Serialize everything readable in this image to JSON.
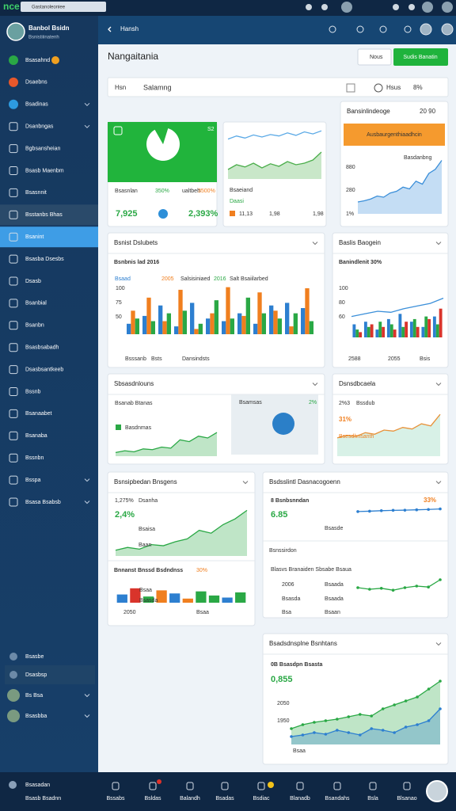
{
  "status_bar": {
    "logo": "nce",
    "search": "Gastanoleoniee"
  },
  "sidebar": {
    "user": {
      "name": "Banbol Bsidn",
      "role": "Bsnistiiinatenh"
    },
    "menu": [
      "Bsasahnd",
      "Dsaebns",
      "Bsadinas",
      "Dsanbngas",
      "Bgbsansheian",
      "Bsasb Maenbm",
      "Bsasnnit",
      "Bsstanbs Bhas",
      "Bsanint",
      "Bsasba Dsesbs",
      "Dsasb",
      "Bsanbial",
      "Bsanbn",
      "Bsasbsabadh",
      "Dsasbsantkeeb",
      "Bssnb",
      "Bsanaabet",
      "Bsanaba",
      "Bssnbn",
      "Bsspa",
      "Bsasa Bsabsb"
    ],
    "bottom": [
      "Bsasbe",
      "Dsasbsp",
      "Bs Bsa",
      "Bsasbba"
    ],
    "footer": [
      "Bsasadan",
      "Bsasb Bsadnn"
    ]
  },
  "header": {
    "title": "Hansh"
  },
  "page": {
    "title": "Nangaitania",
    "buttons": [
      "Nous",
      "Sudis Banatin"
    ]
  },
  "filter": [
    "Hsn",
    "Salamng",
    "Hsus",
    "8%"
  ],
  "cards": [
    {
      "texts": [
        "S2",
        "Bsasnlan",
        "350%",
        "ualtbeh",
        "3500%",
        "7,925",
        "2,393%"
      ],
      "charts": [
        {
          "type": "pie",
          "values": [
            87,
            13
          ],
          "colors": [
            "#ffffff",
            "#23b43c"
          ]
        }
      ]
    },
    {
      "texts": [
        "Bsaeiand",
        "Daasi",
        "11,13",
        "1,98",
        "1,98"
      ],
      "charts": [
        {
          "type": "line",
          "ylim": [
            0,
            100
          ],
          "series": [
            {
              "color": "#5aa9e6",
              "values": [
                40,
                55,
                45,
                60,
                50,
                62,
                55,
                70,
                58,
                75,
                65,
                80
              ]
            }
          ]
        },
        {
          "type": "area",
          "ylim": [
            0,
            100
          ],
          "series": [
            {
              "color": "#4cae4c",
              "values": [
                30,
                45,
                38,
                50,
                35,
                48,
                40,
                55,
                45,
                50,
                60,
                85
              ]
            }
          ]
        }
      ]
    },
    {
      "title": "Bansinlindeoge",
      "texts": [
        "20 90",
        "Ausbaurgenthiaadhcin",
        "Basdanbng",
        "880",
        "280",
        "1%"
      ],
      "charts": [
        {
          "type": "area",
          "ylim": [
            0,
            100
          ],
          "series": [
            {
              "color": "#3b8fd9",
              "values": [
                20,
                22,
                25,
                30,
                28,
                35,
                38,
                45,
                42,
                55,
                50,
                68,
                75,
                90
              ]
            }
          ]
        }
      ]
    },
    {
      "title": "Bsnist Dslubets",
      "texts": [
        "Bsnbnis lad 2016",
        "Bsaad",
        "2005",
        "Salsisiniaed",
        "2016",
        "Salt Bsaiilarbed",
        "100",
        "75",
        "50",
        "Bsssanb",
        "Bsts",
        "Dansindsts"
      ],
      "charts": [
        {
          "type": "bar",
          "ylim": [
            0,
            100
          ],
          "series": [
            {
              "color": "#2d7fd0",
              "values": [
                20,
                35,
                55,
                15,
                60,
                30,
                25,
                40,
                20,
                55,
                60,
                50
              ]
            },
            {
              "color": "#f07f1f",
              "values": [
                45,
                70,
                25,
                85,
                10,
                40,
                90,
                35,
                80,
                45,
                15,
                88
              ]
            },
            {
              "color": "#2aa845",
              "values": [
                30,
                25,
                40,
                45,
                20,
                65,
                30,
                70,
                40,
                30,
                40,
                25
              ]
            }
          ]
        }
      ]
    },
    {
      "title": "Baslis Baogein",
      "texts": [
        "Banindlenit 30%",
        "100",
        "80",
        "60",
        "2588",
        "2055",
        "Bsis"
      ],
      "charts": [
        {
          "type": "combo",
          "ylim": [
            0,
            100
          ],
          "series": [
            {
              "kind": "bar",
              "color": "#2d7fd0",
              "values": [
                25,
                30,
                15,
                35,
                45,
                30,
                20,
                40
              ]
            },
            {
              "kind": "bar",
              "color": "#2aa845",
              "values": [
                15,
                20,
                30,
                25,
                20,
                35,
                40,
                25
              ]
            },
            {
              "kind": "bar",
              "color": "#d9342b",
              "values": [
                10,
                25,
                20,
                15,
                30,
                20,
                35,
                55
              ]
            },
            {
              "kind": "line",
              "color": "#3b8fd9",
              "values": [
                40,
                45,
                50,
                48,
                55,
                60,
                65,
                75
              ]
            }
          ]
        }
      ]
    },
    {
      "title": "Sbsasdnlouns",
      "texts": [
        "Bsanab Btanas",
        "Basdnmas",
        "Bsamsas",
        "2%"
      ],
      "charts": [
        {
          "type": "area",
          "ylim": [
            0,
            100
          ],
          "series": [
            {
              "color": "#2aa845",
              "values": [
                10,
                15,
                12,
                20,
                18,
                25,
                22,
                45,
                40,
                55,
                50,
                65
              ]
            }
          ]
        }
      ]
    },
    {
      "title": "Dsnsdbcaela",
      "texts": [
        "2%3",
        "Bssdub",
        "31%",
        "Bsesdhnsanth"
      ],
      "charts": [
        {
          "type": "area",
          "ylim": [
            0,
            100
          ],
          "series": [
            {
              "color": "#e8923a",
              "fill_color": "#7fd0b0",
              "values": [
                35,
                40,
                38,
                45,
                42,
                50,
                48,
                55,
                52,
                62,
                58,
                80
              ]
            }
          ]
        }
      ]
    },
    {
      "title": "Bsnsipbedan Bnsgens",
      "texts": [
        "1,275%",
        "Dsanha",
        "2,4%",
        "Bsaisa",
        "Baan",
        "Bnnanst Bnssd Bsdndnss",
        "30%",
        "Bsaa",
        "Bsasda",
        "2050",
        "Bsaa"
      ],
      "charts": [
        {
          "type": "area",
          "ylim": [
            0,
            100
          ],
          "series": [
            {
              "color": "#2aa845",
              "values": [
                10,
                15,
                12,
                20,
                18,
                25,
                30,
                45,
                40,
                55,
                65,
                80
              ]
            }
          ]
        },
        {
          "type": "bar",
          "ylim": [
            0,
            100
          ],
          "series": [
            {
              "colors": [
                "#2d7fd0",
                "#d9342b",
                "#2aa845",
                "#f07f1f",
                "#2d7fd0",
                "#f07f1f",
                "#2aa845",
                "#2aa845",
                "#2d7fd0",
                "#2aa845"
              ],
              "values": [
                40,
                70,
                30,
                60,
                45,
                20,
                55,
                35,
                25,
                50
              ]
            }
          ]
        }
      ]
    },
    {
      "title": "Bsdsslintl Dasnacogoenn",
      "texts": [
        "8 Bsnbsnndan",
        "33%",
        "6.85",
        "Bsasde",
        "Bsnssirdon",
        "Blasvs Branaiden Sbsabe Bsaua",
        "2006",
        "Bsaada",
        "Bsasda",
        "Bsaada",
        "Bsa",
        "Bsaan"
      ],
      "charts": [
        {
          "type": "line",
          "markers": true,
          "ylim": [
            0,
            100
          ],
          "series": [
            {
              "color": "#2d7fd0",
              "values": [
                55,
                57,
                60,
                62,
                63,
                65,
                67,
                70
              ]
            }
          ]
        },
        {
          "type": "line",
          "markers": true,
          "ylim": [
            0,
            100
          ],
          "series": [
            {
              "color": "#2aa845",
              "values": [
                50,
                45,
                48,
                42,
                50,
                55,
                52,
                75
              ]
            }
          ]
        }
      ]
    },
    {
      "title": "Bsadsdnsplne Bsnhtans",
      "texts": [
        "0B Bsasdpn Bsasta",
        "0,855",
        "2050",
        "1950",
        "Bsaa"
      ],
      "charts": [
        {
          "type": "area",
          "markers": true,
          "ylim": [
            0,
            100
          ],
          "series": [
            {
              "color": "#2aa845",
              "values": [
                20,
                25,
                28,
                30,
                32,
                35,
                38,
                36,
                45,
                50,
                55,
                60,
                70,
                80
              ]
            },
            {
              "color": "#2d7fd0",
              "values": [
                10,
                12,
                15,
                13,
                18,
                15,
                12,
                20,
                18,
                15,
                22,
                25,
                30,
                45
              ]
            }
          ]
        }
      ]
    }
  ],
  "bottom_nav": [
    "Bssabs",
    "Bsldas",
    "Balandh",
    "Bsadas",
    "Bsdiac",
    "Blanadb",
    "Bsandahs",
    "Bsla",
    "Blsanao"
  ]
}
